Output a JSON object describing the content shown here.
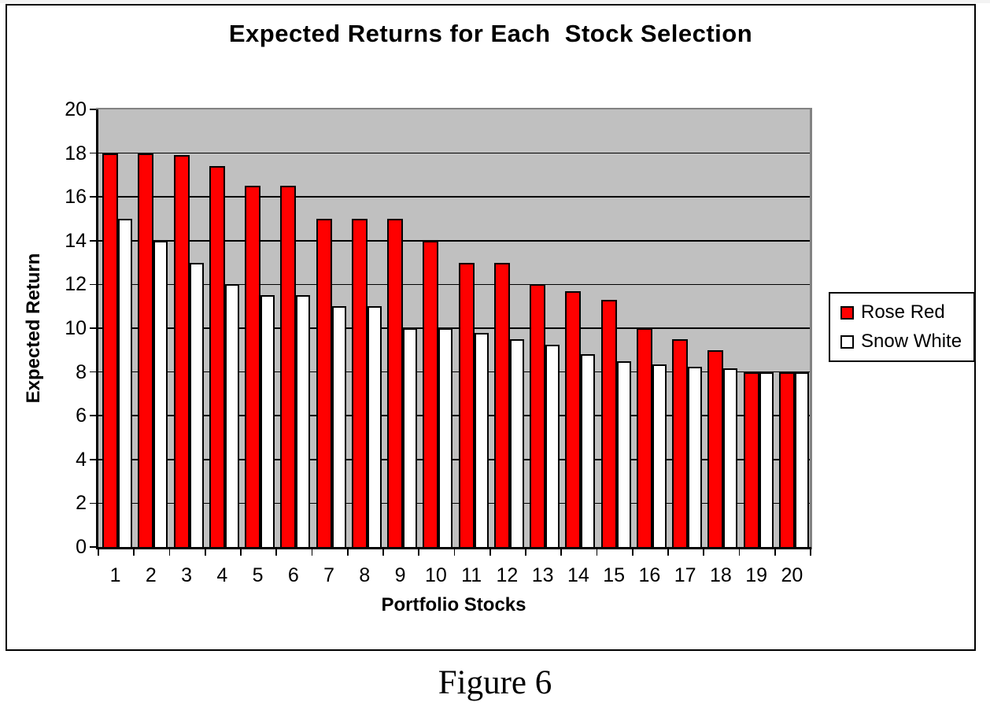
{
  "caption": "Figure 6",
  "chart_data": {
    "type": "bar",
    "title": "Expected Returns for Each  Stock Selection",
    "xlabel": "Portfolio Stocks",
    "ylabel": "Expected Return",
    "categories": [
      "1",
      "2",
      "3",
      "4",
      "5",
      "6",
      "7",
      "8",
      "9",
      "10",
      "11",
      "12",
      "13",
      "14",
      "15",
      "16",
      "17",
      "18",
      "19",
      "20"
    ],
    "series": [
      {
        "name": "Rose Red",
        "color": "#ff0000",
        "values": [
          18,
          18,
          17.9,
          17.4,
          16.5,
          16.5,
          15,
          15,
          15,
          14,
          13,
          13,
          12,
          11.7,
          11.3,
          10,
          9.5,
          9,
          8,
          8
        ]
      },
      {
        "name": "Snow White",
        "color": "#ffffff",
        "values": [
          15,
          14,
          13,
          12,
          11.5,
          11.5,
          11,
          11,
          10,
          10,
          9.8,
          9.5,
          9.25,
          8.8,
          8.5,
          8.35,
          8.25,
          8.15,
          8,
          8
        ]
      }
    ],
    "ylim": [
      0,
      20
    ],
    "yticks": [
      20,
      18,
      16,
      14,
      12,
      10,
      8,
      6,
      4,
      2,
      0
    ],
    "grid": "horizontal",
    "plot_background": "#c0c0c0",
    "bar_border_color": "#000000",
    "legend_position": "right"
  }
}
